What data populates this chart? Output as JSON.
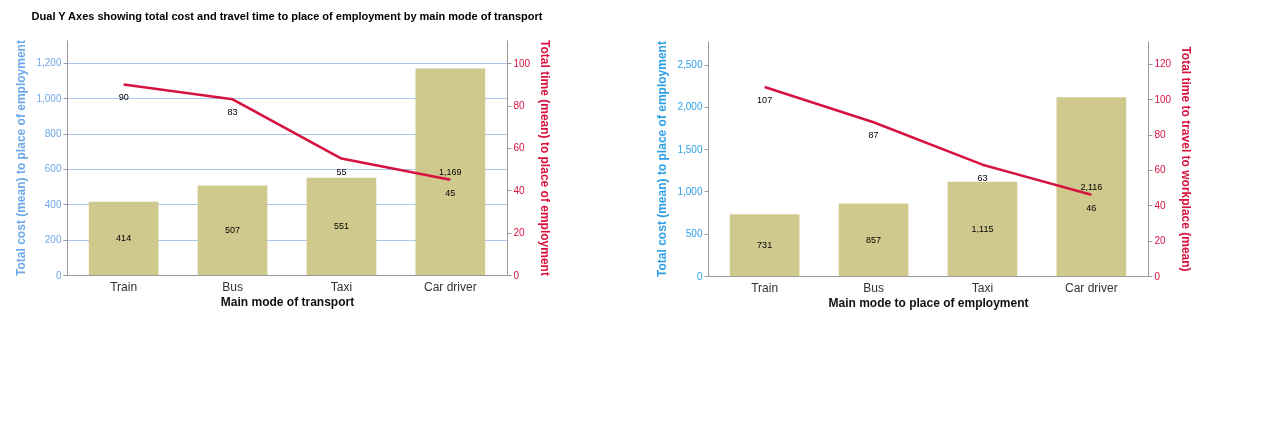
{
  "chart_data": [
    {
      "type": "bar",
      "title": "Dual Y Axes showing total cost and travel time to place of employment by main mode of transport",
      "xlabel": "Main mode of transport",
      "ylabel": "Total cost (mean) to place of employment",
      "y2label": "Total time (mean) to place of employment",
      "categories": [
        "Train",
        "Bus",
        "Taxi",
        "Car driver"
      ],
      "series": [
        {
          "color": "#d0c98e",
          "values": [
            414,
            507,
            551,
            1169
          ],
          "value_labels": [
            "414",
            "507",
            "551",
            "1,169"
          ]
        },
        {
          "type": "line",
          "axis": "y2",
          "color": "#d6123f",
          "values": [
            90,
            83,
            55,
            45
          ]
        }
      ],
      "ylim": [
        0,
        1330
      ],
      "yticks": [
        0,
        200,
        400,
        600,
        800,
        {
          "value": 1000,
          "label": "1,000"
        },
        {
          "value": 1200,
          "label": "1,200"
        }
      ],
      "y2lim": [
        0,
        111
      ],
      "y2ticks": [
        0,
        20,
        40,
        60,
        80,
        100
      ],
      "grid": "y",
      "data_labels": true
    },
    {
      "type": "bar",
      "xlabel": "Main mode to place of employment",
      "ylabel": "Total cost (mean) to place of employment",
      "y2label": "Total time to travel to workplace (mean)",
      "categories": [
        "Train",
        "Bus",
        "Taxi",
        "Car driver"
      ],
      "series": [
        {
          "color": "#d0c98e",
          "values": [
            731,
            857,
            1115,
            2116
          ],
          "value_labels": [
            "731",
            "857",
            "1,115",
            "2,116"
          ]
        },
        {
          "type": "line",
          "axis": "y2",
          "color": "#d6123f",
          "values": [
            107,
            87,
            63,
            46
          ]
        }
      ],
      "ylim": [
        0,
        2780
      ],
      "yticks": [
        0,
        500,
        {
          "value": 1000,
          "label": "1,000"
        },
        {
          "value": 1500,
          "label": "1,500"
        },
        {
          "value": 2000,
          "label": "2,000"
        },
        {
          "value": 2500,
          "label": "2,500"
        }
      ],
      "y2lim": [
        0,
        133
      ],
      "y2ticks": [
        0,
        20,
        40,
        60,
        80,
        100,
        120
      ],
      "grid": false,
      "data_labels": true
    }
  ]
}
